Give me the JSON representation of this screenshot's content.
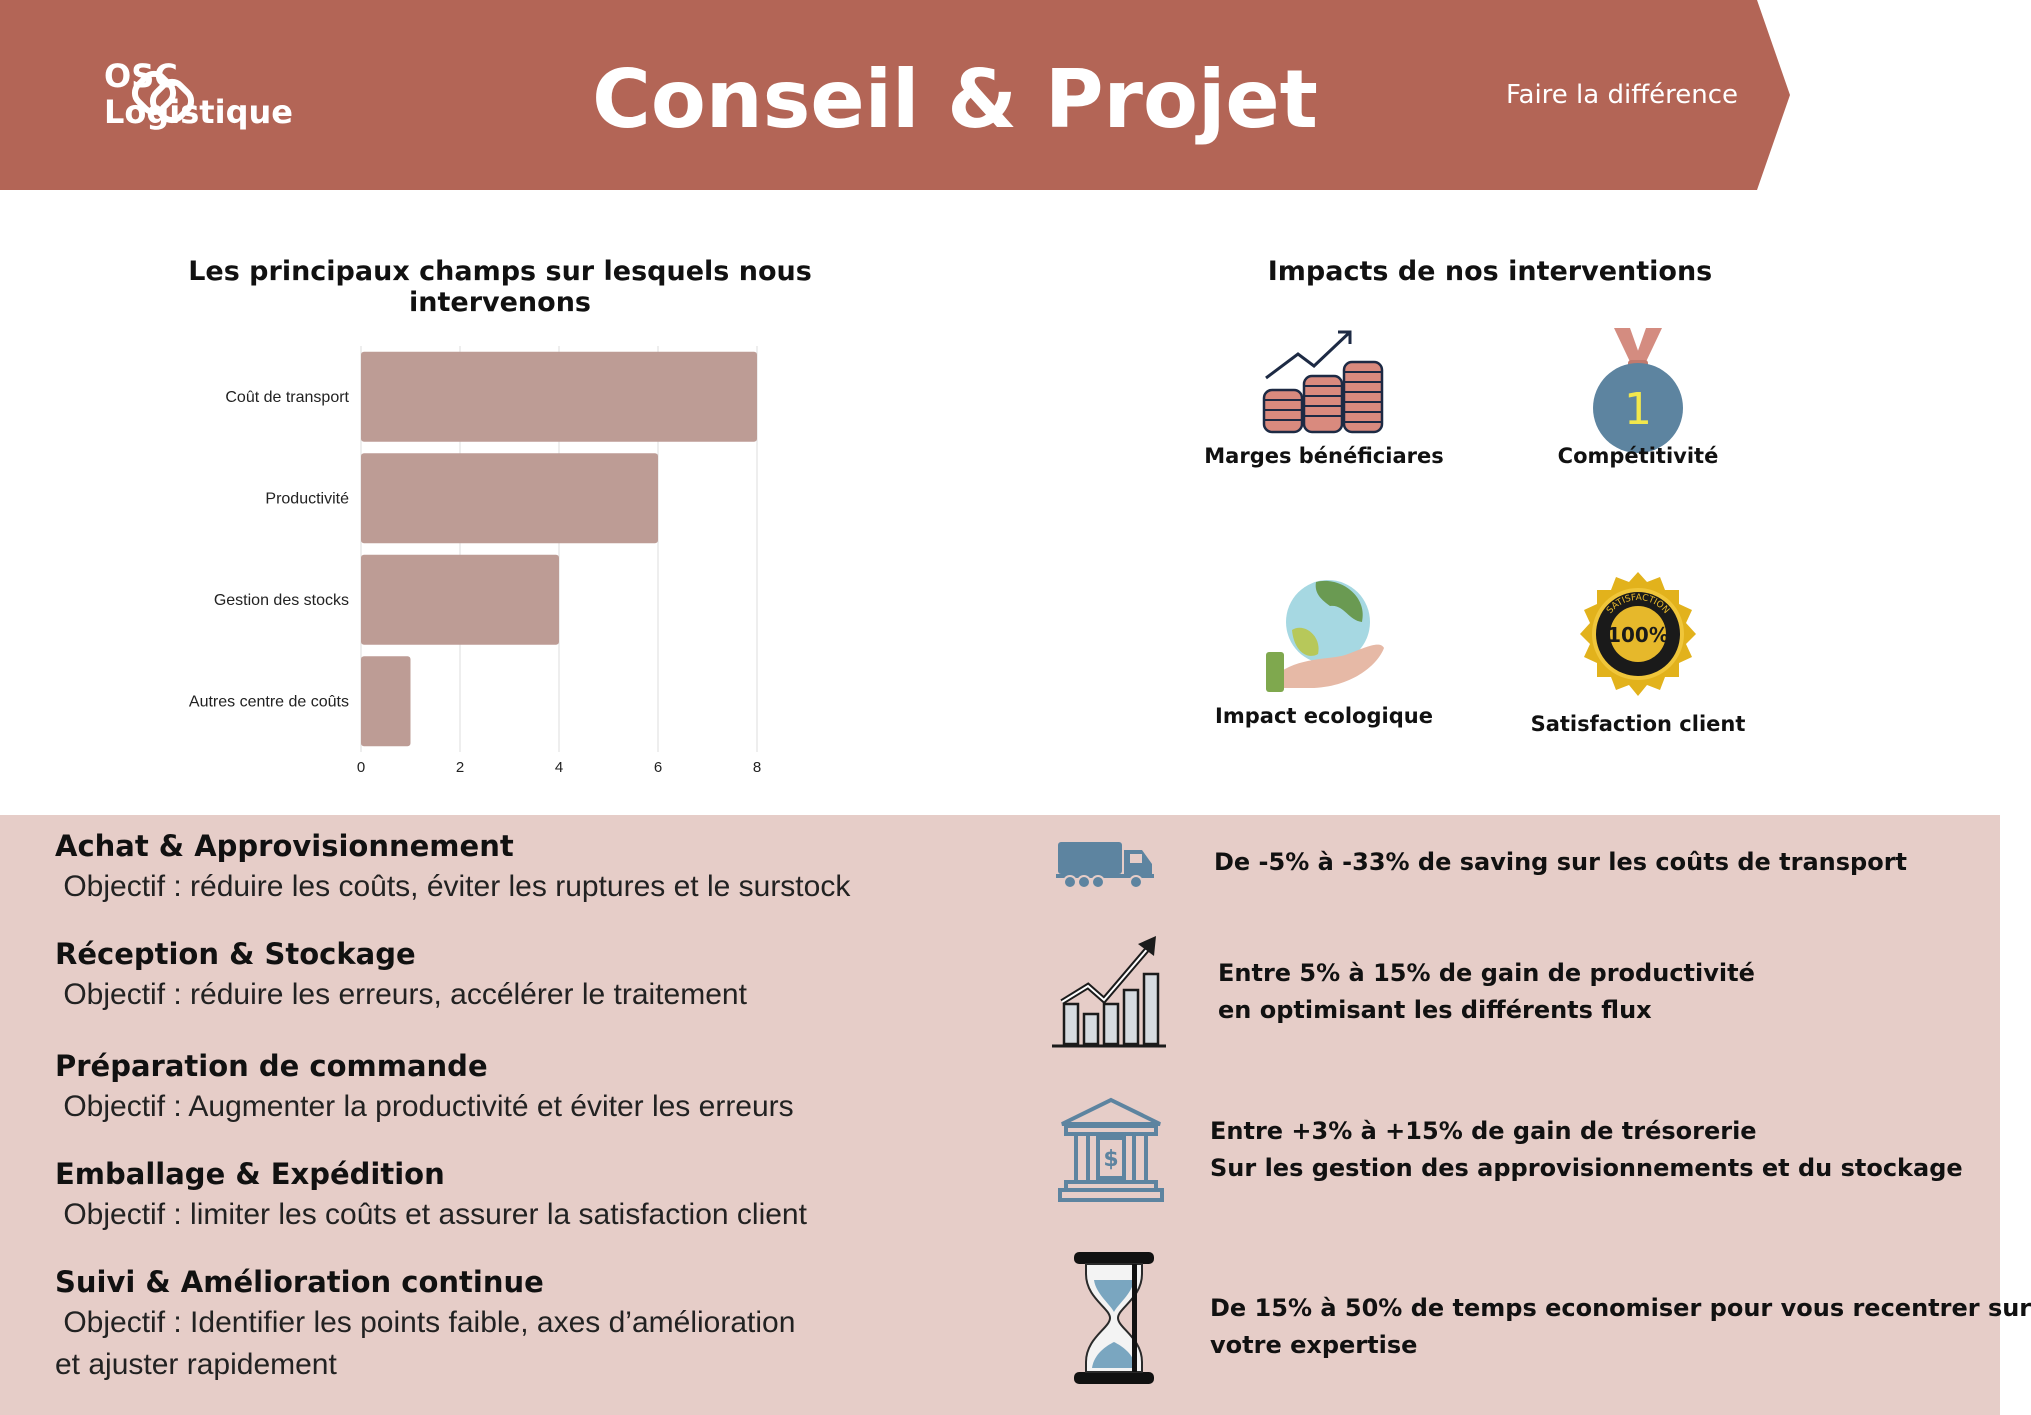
{
  "header": {
    "logo_line1": "OSC",
    "logo_line2": "Logistique",
    "title": "Conseil & Projet",
    "tagline": "Faire la différence"
  },
  "colors": {
    "banner": "#b36556",
    "bar": "#bd9c95",
    "band": "#e6cdc8",
    "icon_blue": "#5d84a0"
  },
  "chart_data": {
    "type": "bar",
    "orientation": "horizontal",
    "title": "Les principaux champs sur lesquels nous intervenons",
    "categories": [
      "Coût de transport",
      "Productivité",
      "Gestion des stocks",
      "Autres centre de coûts"
    ],
    "values": [
      8,
      6,
      4,
      1
    ],
    "xticks": [
      "0",
      "2",
      "4",
      "6",
      "8"
    ],
    "xlim": [
      0,
      8
    ],
    "xlabel": "",
    "ylabel": "",
    "grid": true
  },
  "impacts": {
    "title": "Impacts de nos interventions",
    "items": [
      {
        "label": "Marges bénéficiares",
        "icon": "coins-growth-icon"
      },
      {
        "label": "Compétitivité",
        "icon": "medal-icon",
        "medal_number": "1"
      },
      {
        "label": "Impact ecologique",
        "icon": "earth-in-hand-icon"
      },
      {
        "label": "Satisfaction client",
        "icon": "satisfaction-seal-icon",
        "seal_text": "100%",
        "seal_ring": "SATISFACTION"
      }
    ]
  },
  "steps": [
    {
      "title": "Achat & Approvisionnement",
      "objective": " Objectif : réduire les coûts, éviter les ruptures et le surstock"
    },
    {
      "title": "Réception & Stockage",
      "objective": " Objectif : réduire les erreurs, accélérer le traitement"
    },
    {
      "title": "Préparation de commande",
      "objective": " Objectif : Augmenter la productivité et éviter les erreurs"
    },
    {
      "title": "Emballage & Expédition",
      "objective": " Objectif : limiter les coûts et assurer la satisfaction client"
    },
    {
      "title": "Suivi & Amélioration continue",
      "objective": " Objectif : Identifier les points faible, axes d’amélioration",
      "objective_line2": "et ajuster rapidement"
    }
  ],
  "gains": [
    {
      "icon": "truck-icon",
      "line1": "De -5% à -33% de saving sur les coûts de transport"
    },
    {
      "icon": "growth-chart-icon",
      "line1": "Entre 5% à 15% de gain de productivité",
      "line2": "en optimisant les différents flux"
    },
    {
      "icon": "bank-icon",
      "line1": "Entre +3% à +15% de gain de trésorerie",
      "line2": "Sur les gestion des approvisionnements et du stockage"
    },
    {
      "icon": "hourglass-icon",
      "line1": "De 15% à 50% de temps economiser pour vous recentrer sur",
      "line2": "votre expertise"
    }
  ]
}
